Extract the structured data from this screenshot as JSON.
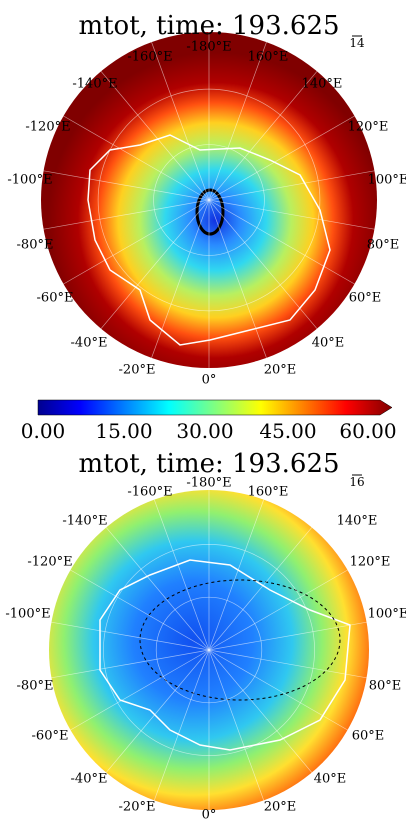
{
  "panels": [
    {
      "title": "mtot, time: 193.625",
      "key_label": "14",
      "lon_labels": [
        "-180°E",
        "160°E",
        "140°E",
        "120°E",
        "100°E",
        "80°E",
        "60°E",
        "40°E",
        "20°E",
        "0°",
        "-20°E",
        "-40°E",
        "-60°E",
        "-80°E",
        "-100°E",
        "-120°E",
        "-140°E",
        "-160°E"
      ]
    },
    {
      "title": "mtot, time: 193.625",
      "key_label": "16",
      "lon_labels": [
        "-180°E",
        "160°E",
        "140°E",
        "120°E",
        "100°E",
        "80°E",
        "60°E",
        "40°E",
        "20°E",
        "0°",
        "-20°E",
        "-40°E",
        "-60°E",
        "-80°E",
        "-100°E",
        "-120°E",
        "-140°E",
        "-160°E"
      ]
    }
  ],
  "colorbar": {
    "ticks": [
      "0.00",
      "15.00",
      "30.00",
      "45.00",
      "60.00"
    ]
  }
}
